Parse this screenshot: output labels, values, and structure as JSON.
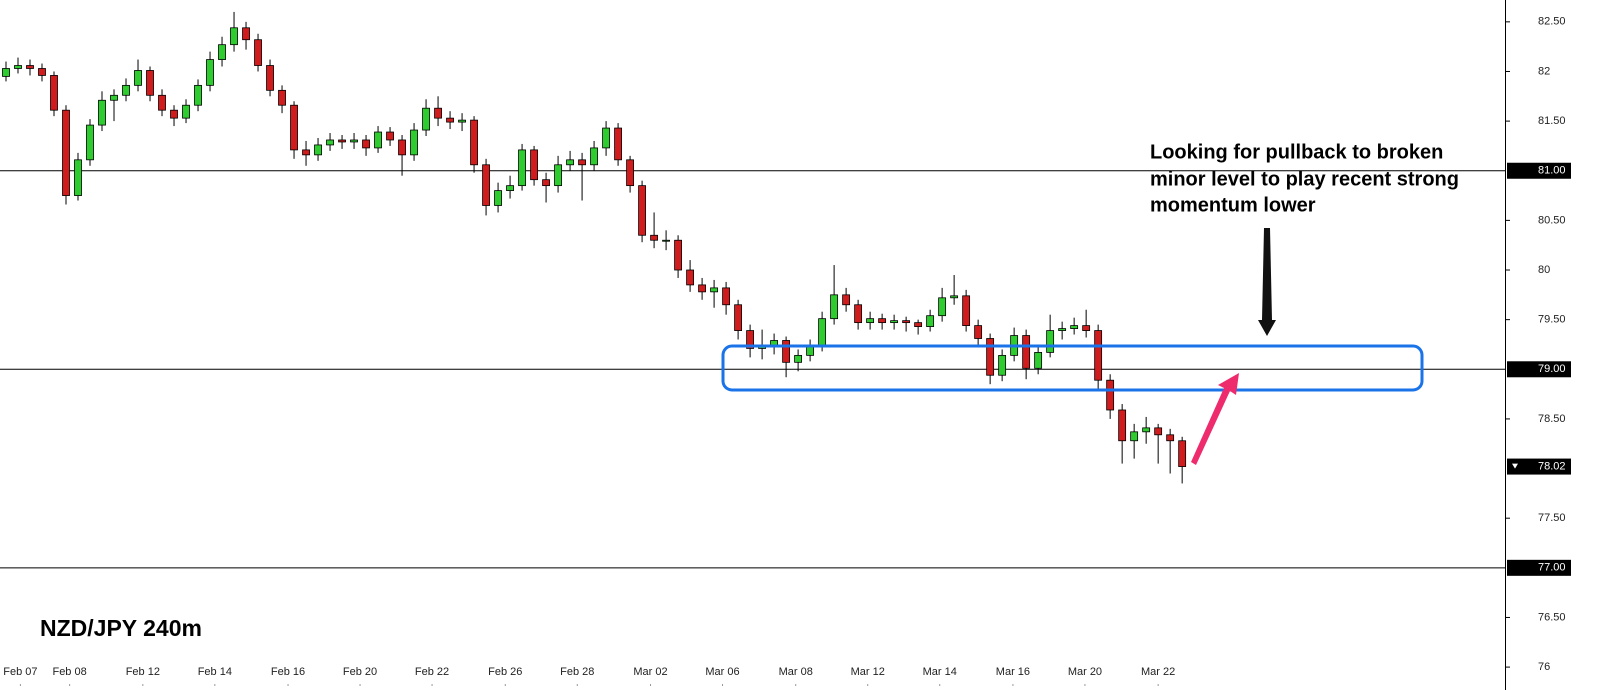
{
  "chart_data": {
    "type": "candlestick",
    "title": "NZD/JPY 240m",
    "annotation": [
      "Looking for pullback to broken",
      "minor level to play recent strong",
      "momentum lower"
    ],
    "up_color": "#2ecc2e",
    "down_color": "#d01c1c",
    "xlim": [
      -0.5,
      124.9
    ],
    "xticks": [
      {
        "value": 1.2,
        "label": "Feb 07"
      },
      {
        "value": 5.3,
        "label": "Feb 08"
      },
      {
        "value": 11.4,
        "label": "Feb 12"
      },
      {
        "value": 17.4,
        "label": "Feb 14"
      },
      {
        "value": 23.5,
        "label": "Feb 16"
      },
      {
        "value": 29.5,
        "label": "Feb 20"
      },
      {
        "value": 35.5,
        "label": "Feb 22"
      },
      {
        "value": 41.6,
        "label": "Feb 26"
      },
      {
        "value": 47.6,
        "label": "Feb 28"
      },
      {
        "value": 53.7,
        "label": "Mar 02"
      },
      {
        "value": 59.7,
        "label": "Mar 06"
      },
      {
        "value": 65.8,
        "label": "Mar 08"
      },
      {
        "value": 71.8,
        "label": "Mar 12"
      },
      {
        "value": 77.8,
        "label": "Mar 14"
      },
      {
        "value": 83.9,
        "label": "Mar 16"
      },
      {
        "value": 89.9,
        "label": "Mar 20"
      },
      {
        "value": 96,
        "label": "Mar 22"
      }
    ],
    "ylim": [
      75.87,
      82.72
    ],
    "yticks": [
      {
        "value": 82.5,
        "label": "82.50"
      },
      82,
      {
        "value": 81.5,
        "label": "81.50"
      },
      {
        "value": 80.5,
        "label": "80.50"
      },
      80,
      {
        "value": 79.5,
        "label": "79.50"
      },
      {
        "value": 78.5,
        "label": "78.50"
      },
      {
        "value": 77.5,
        "label": "77.50"
      },
      {
        "value": 76.5,
        "label": "76.50"
      },
      76
    ],
    "levels": [
      {
        "value": 81,
        "label": "81.00"
      },
      {
        "value": 79,
        "label": "79.00"
      },
      {
        "value": 77,
        "label": "77.00"
      }
    ],
    "last_price": {
      "value": 78.02,
      "label": "78.02"
    },
    "ohlc": [
      [
        81.95,
        82.1,
        81.9,
        82.03
      ],
      [
        82.03,
        82.14,
        81.98,
        82.06
      ],
      [
        82.06,
        82.12,
        81.96,
        82.03
      ],
      [
        82.03,
        82.08,
        81.9,
        81.96
      ],
      [
        81.96,
        82.0,
        81.55,
        81.61
      ],
      [
        81.61,
        81.66,
        80.66,
        80.75
      ],
      [
        80.75,
        81.18,
        80.7,
        81.11
      ],
      [
        81.11,
        81.52,
        81.05,
        81.46
      ],
      [
        81.46,
        81.8,
        81.4,
        81.71
      ],
      [
        81.71,
        81.82,
        81.5,
        81.76
      ],
      [
        81.76,
        81.93,
        81.7,
        81.86
      ],
      [
        81.86,
        82.12,
        81.8,
        82.01
      ],
      [
        82.01,
        82.05,
        81.7,
        81.76
      ],
      [
        81.76,
        81.82,
        81.55,
        81.61
      ],
      [
        81.61,
        81.66,
        81.45,
        81.53
      ],
      [
        81.53,
        81.72,
        81.48,
        81.66
      ],
      [
        81.66,
        81.92,
        81.6,
        81.86
      ],
      [
        81.86,
        82.2,
        81.8,
        82.12
      ],
      [
        82.12,
        82.35,
        82.05,
        82.27
      ],
      [
        82.27,
        82.6,
        82.2,
        82.44
      ],
      [
        82.44,
        82.5,
        82.22,
        82.32
      ],
      [
        82.32,
        82.38,
        82.0,
        82.06
      ],
      [
        82.06,
        82.12,
        81.75,
        81.81
      ],
      [
        81.81,
        81.86,
        81.58,
        81.66
      ],
      [
        81.66,
        81.7,
        81.12,
        81.21
      ],
      [
        81.21,
        81.3,
        81.05,
        81.16
      ],
      [
        81.16,
        81.33,
        81.1,
        81.26
      ],
      [
        81.26,
        81.38,
        81.2,
        81.31
      ],
      [
        81.31,
        81.36,
        81.22,
        81.29
      ],
      [
        81.29,
        81.38,
        81.22,
        81.31
      ],
      [
        81.31,
        81.36,
        81.15,
        81.23
      ],
      [
        81.23,
        81.45,
        81.18,
        81.39
      ],
      [
        81.39,
        81.44,
        81.25,
        81.31
      ],
      [
        81.31,
        81.36,
        80.95,
        81.16
      ],
      [
        81.16,
        81.48,
        81.1,
        81.41
      ],
      [
        81.41,
        81.72,
        81.35,
        81.63
      ],
      [
        81.63,
        81.75,
        81.45,
        81.53
      ],
      [
        81.53,
        81.6,
        81.42,
        81.49
      ],
      [
        81.49,
        81.58,
        81.4,
        81.51
      ],
      [
        81.51,
        81.55,
        80.98,
        81.06
      ],
      [
        81.06,
        81.12,
        80.55,
        80.65
      ],
      [
        80.65,
        80.88,
        80.58,
        80.8
      ],
      [
        80.8,
        80.95,
        80.72,
        80.85
      ],
      [
        80.85,
        81.27,
        80.8,
        81.21
      ],
      [
        81.21,
        81.25,
        80.85,
        80.91
      ],
      [
        80.91,
        80.98,
        80.68,
        80.85
      ],
      [
        80.85,
        81.15,
        80.78,
        81.06
      ],
      [
        81.06,
        81.2,
        81.0,
        81.11
      ],
      [
        81.11,
        81.18,
        80.7,
        81.06
      ],
      [
        81.06,
        81.3,
        81.0,
        81.23
      ],
      [
        81.23,
        81.5,
        81.15,
        81.43
      ],
      [
        81.43,
        81.48,
        81.05,
        81.11
      ],
      [
        81.11,
        81.15,
        80.78,
        80.85
      ],
      [
        80.85,
        80.9,
        80.28,
        80.35
      ],
      [
        80.35,
        80.58,
        80.22,
        80.3
      ],
      [
        80.3,
        80.4,
        80.2,
        80.3
      ],
      [
        80.3,
        80.35,
        79.92,
        80.0
      ],
      [
        80.0,
        80.1,
        79.78,
        79.85
      ],
      [
        79.85,
        79.92,
        79.7,
        79.78
      ],
      [
        79.78,
        79.9,
        79.62,
        79.82
      ],
      [
        79.82,
        79.88,
        79.55,
        79.65
      ],
      [
        79.65,
        79.7,
        79.3,
        79.39
      ],
      [
        79.39,
        79.45,
        79.12,
        79.21
      ],
      [
        79.21,
        79.4,
        79.1,
        79.24
      ],
      [
        79.24,
        79.36,
        79.15,
        79.29
      ],
      [
        79.29,
        79.33,
        78.92,
        79.07
      ],
      [
        79.07,
        79.2,
        78.98,
        79.14
      ],
      [
        79.14,
        79.3,
        79.08,
        79.24
      ],
      [
        79.24,
        79.58,
        79.18,
        79.51
      ],
      [
        79.51,
        80.05,
        79.45,
        79.75
      ],
      [
        79.75,
        79.82,
        79.58,
        79.65
      ],
      [
        79.65,
        79.7,
        79.4,
        79.47
      ],
      [
        79.47,
        79.58,
        79.4,
        79.51
      ],
      [
        79.51,
        79.56,
        79.4,
        79.47
      ],
      [
        79.47,
        79.55,
        79.4,
        79.49
      ],
      [
        79.49,
        79.53,
        79.38,
        79.47
      ],
      [
        79.47,
        79.5,
        79.35,
        79.43
      ],
      [
        79.43,
        79.6,
        79.38,
        79.54
      ],
      [
        79.54,
        79.82,
        79.48,
        79.72
      ],
      [
        79.72,
        79.95,
        79.65,
        79.74
      ],
      [
        79.74,
        79.8,
        79.38,
        79.44
      ],
      [
        79.44,
        79.5,
        79.22,
        79.31
      ],
      [
        79.31,
        79.36,
        78.85,
        78.94
      ],
      [
        78.94,
        79.2,
        78.88,
        79.14
      ],
      [
        79.14,
        79.42,
        79.08,
        79.34
      ],
      [
        79.34,
        79.4,
        78.9,
        79.01
      ],
      [
        79.01,
        79.25,
        78.95,
        79.17
      ],
      [
        79.17,
        79.55,
        79.12,
        79.39
      ],
      [
        79.39,
        79.48,
        79.3,
        79.41
      ],
      [
        79.41,
        79.52,
        79.35,
        79.44
      ],
      [
        79.44,
        79.6,
        79.32,
        79.39
      ],
      [
        79.39,
        79.45,
        78.8,
        78.89
      ],
      [
        78.89,
        78.95,
        78.5,
        78.59
      ],
      [
        78.59,
        78.65,
        78.05,
        78.28
      ],
      [
        78.28,
        78.45,
        78.1,
        78.37
      ],
      [
        78.37,
        78.52,
        78.25,
        78.41
      ],
      [
        78.41,
        78.45,
        78.05,
        78.34
      ],
      [
        78.34,
        78.4,
        77.95,
        78.28
      ],
      [
        78.28,
        78.32,
        77.85,
        78.02
      ]
    ]
  }
}
